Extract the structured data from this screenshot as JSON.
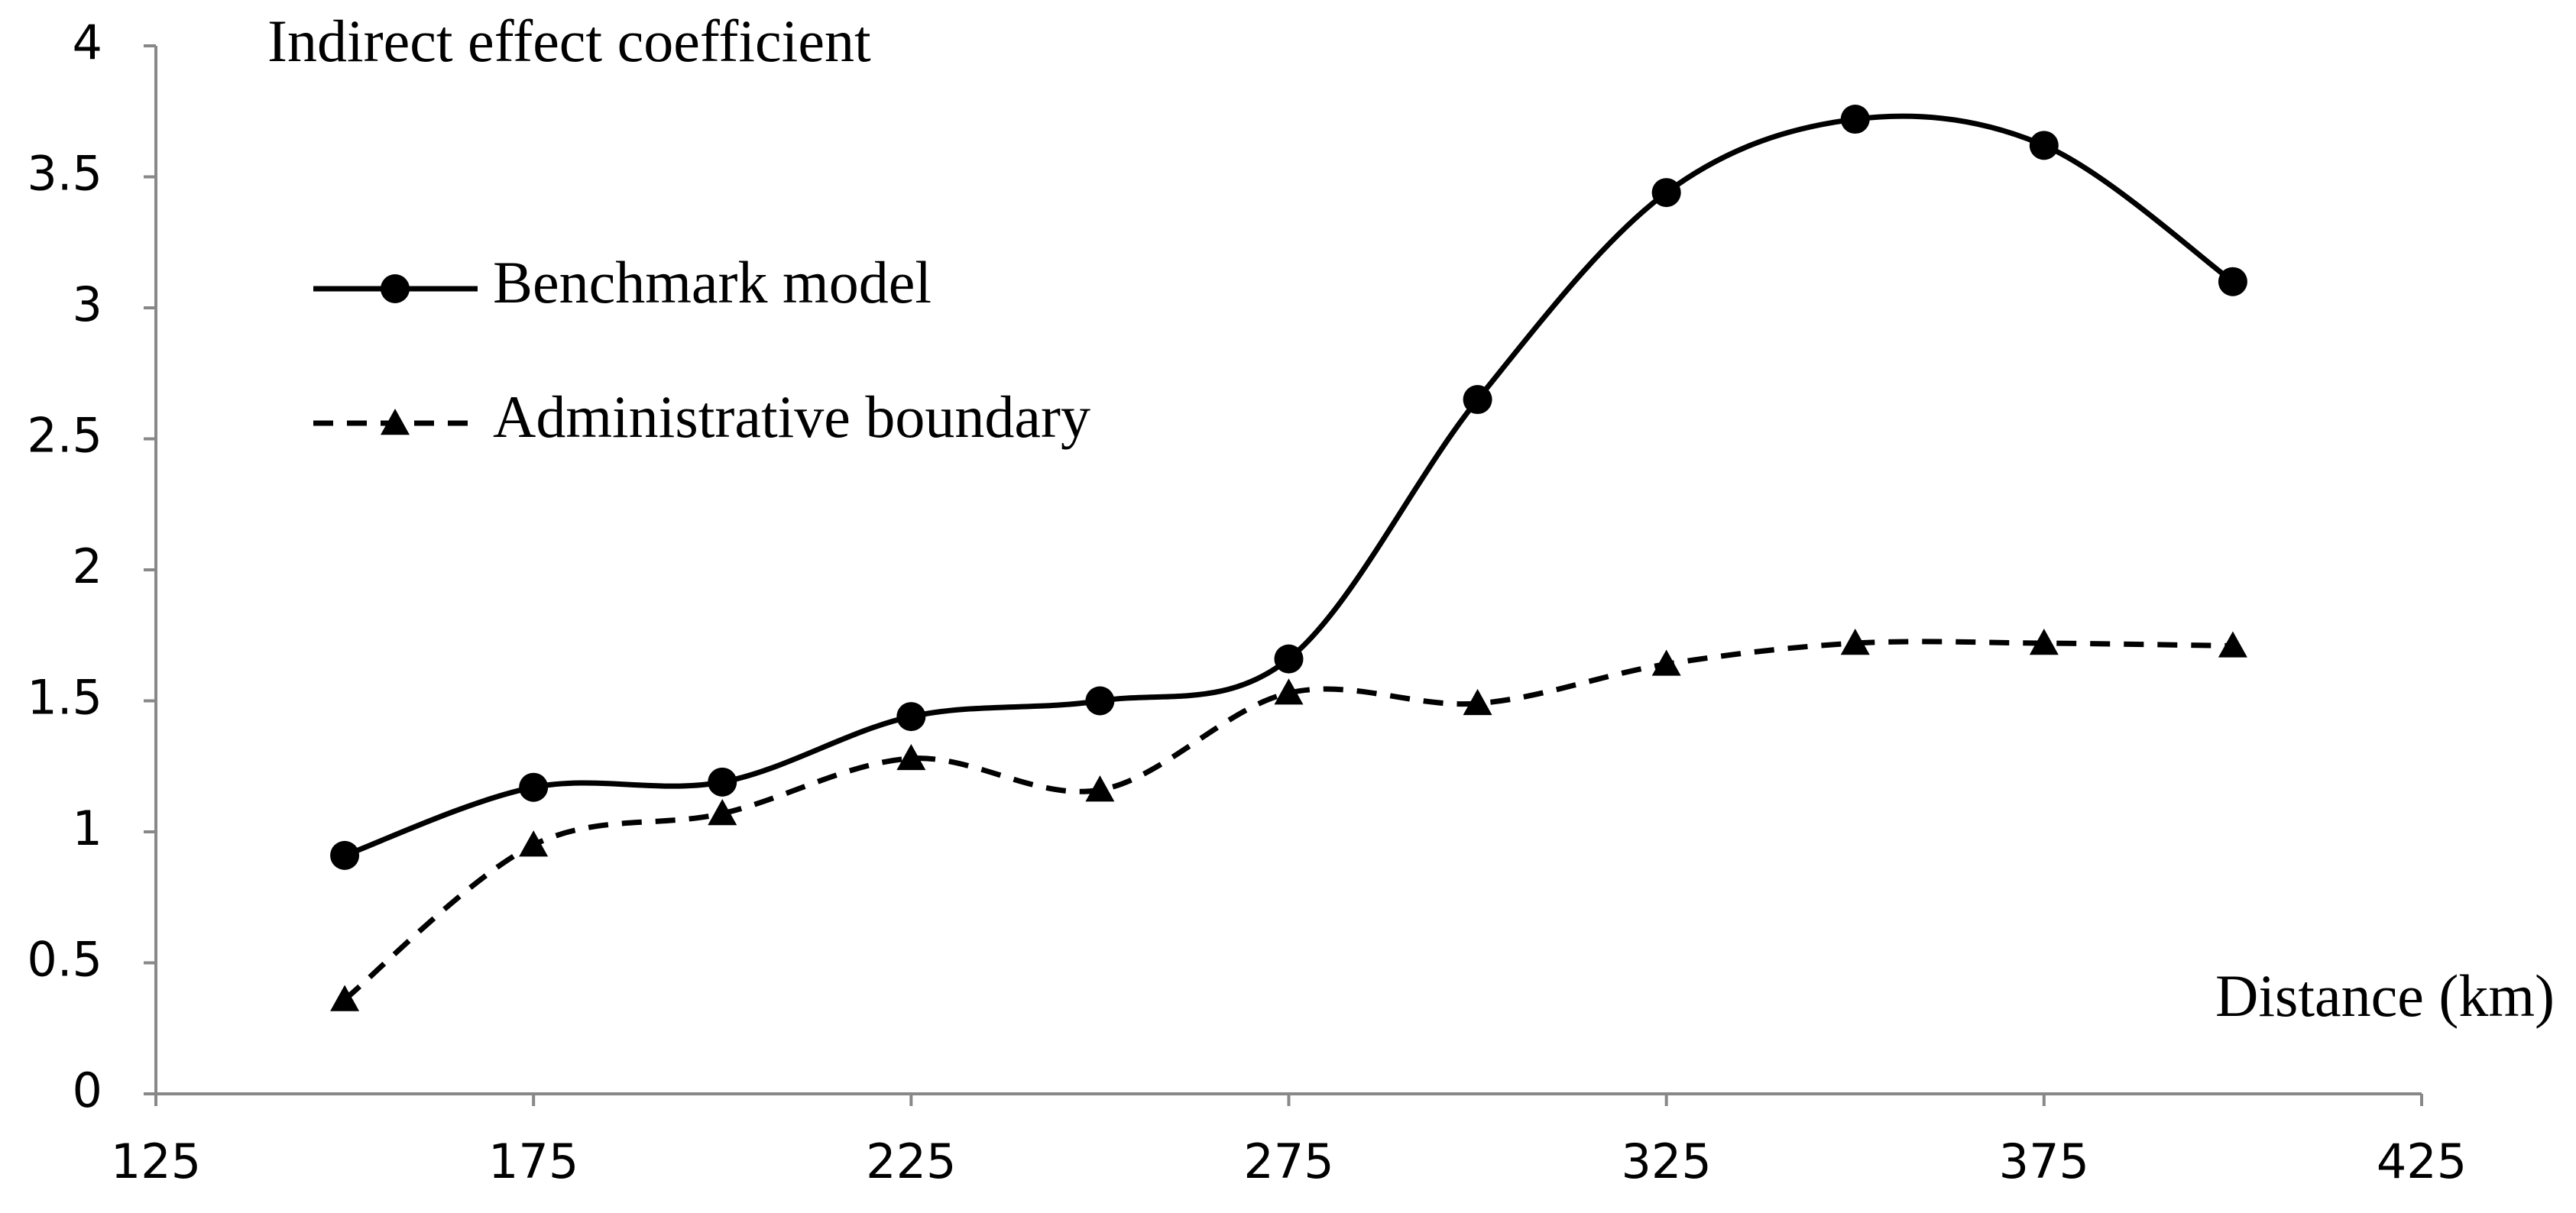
{
  "chart_data": {
    "type": "line",
    "title": "Indirect effect coefficient",
    "x_label": "Distance (km)",
    "x": [
      150,
      175,
      200,
      225,
      250,
      275,
      300,
      325,
      350,
      375,
      400
    ],
    "series": [
      {
        "name": "Benchmark model",
        "color": "#000000",
        "marker": "circle",
        "dash": "solid",
        "values": [
          0.91,
          1.17,
          1.19,
          1.44,
          1.5,
          1.66,
          2.65,
          3.44,
          3.72,
          3.62,
          3.1
        ]
      },
      {
        "name": "Administrative boundary",
        "color": "#000000",
        "marker": "triangle",
        "dash": "dashed",
        "values": [
          0.36,
          0.95,
          1.07,
          1.28,
          1.16,
          1.53,
          1.49,
          1.64,
          1.72,
          1.72,
          1.71
        ]
      }
    ],
    "xlim": [
      125,
      425
    ],
    "xticks": [
      125,
      175,
      225,
      275,
      325,
      375,
      425
    ],
    "ylim": [
      0,
      4
    ],
    "yticks": [
      0,
      0.5,
      1,
      1.5,
      2,
      2.5,
      3,
      3.5,
      4
    ],
    "smooth": true,
    "grid": false
  }
}
